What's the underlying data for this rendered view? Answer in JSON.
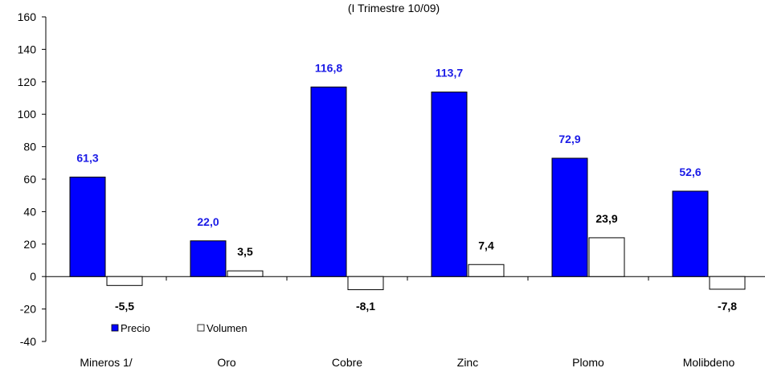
{
  "chart_data": {
    "type": "bar",
    "subtitle": "(I Trimestre 10/09)",
    "categories": [
      "Mineros 1/",
      "Oro",
      "Cobre",
      "Zinc",
      "Plomo",
      "Molibdeno"
    ],
    "series": [
      {
        "name": "Precio",
        "values": [
          61.3,
          22.0,
          116.8,
          113.7,
          72.9,
          52.6
        ],
        "labels": [
          "61,3",
          "22,0",
          "116,8",
          "113,7",
          "72,9",
          "52,6"
        ],
        "color": "#0000FF",
        "label_color": "#1A1AE6"
      },
      {
        "name": "Volumen",
        "values": [
          -5.5,
          3.5,
          -8.1,
          7.4,
          23.9,
          -7.8
        ],
        "labels": [
          "-5,5",
          "3,5",
          "-8,1",
          "7,4",
          "23,9",
          "-7,8"
        ],
        "color": "#FFFFFF",
        "label_color": "#000000"
      }
    ],
    "ylim": [
      -40,
      160
    ],
    "yticks": [
      -40,
      -20,
      0,
      20,
      40,
      60,
      80,
      100,
      120,
      140,
      160
    ],
    "ytick_labels": [
      "-40",
      "-20",
      "0",
      "20",
      "40",
      "60",
      "80",
      "100",
      "120",
      "140",
      "160"
    ],
    "xlabel": "",
    "ylabel": "",
    "grid": false,
    "legend_position": "bottom-left"
  }
}
